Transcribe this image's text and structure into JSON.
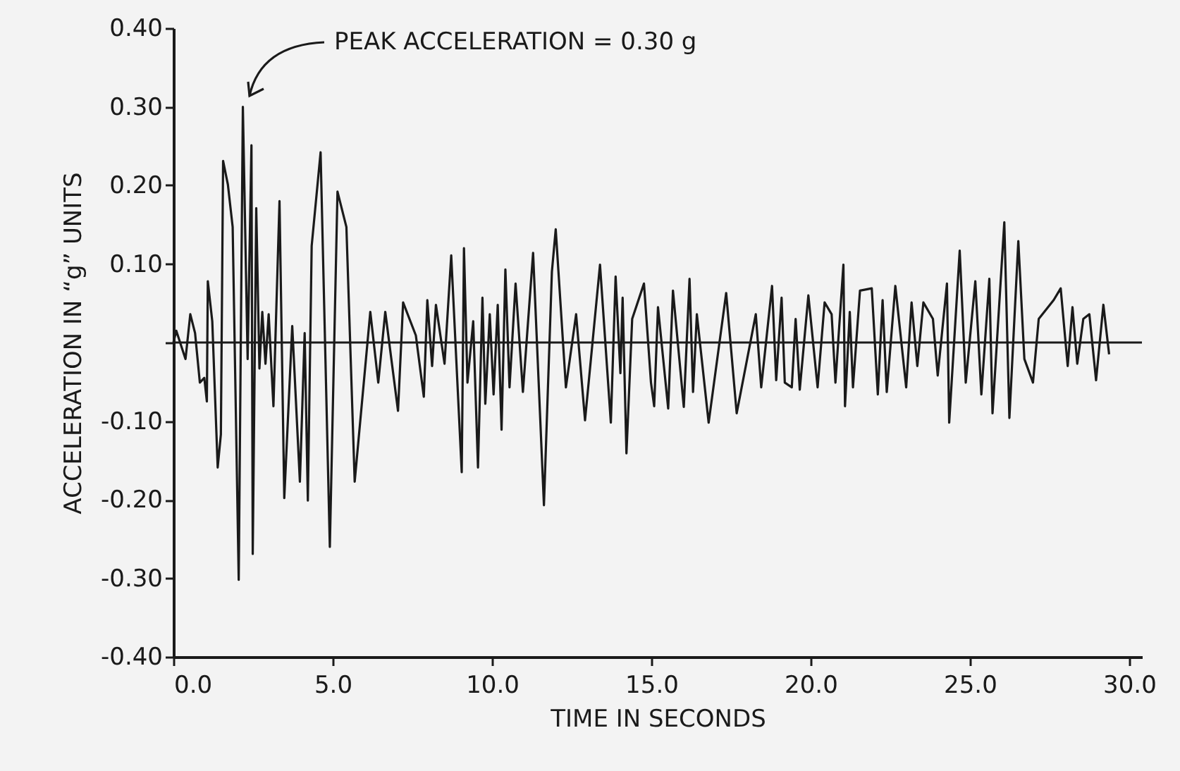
{
  "chart_data": {
    "type": "line",
    "xlabel": "TIME IN SECONDS",
    "ylabel": "ACCELERATION IN “g” UNITS",
    "annotations": [
      "PEAK  ACCELERATION = 0.30 g"
    ],
    "xlim": [
      0,
      30.4
    ],
    "ylim": [
      -0.4,
      0.4
    ],
    "xticks": [
      {
        "value": 0,
        "label": "0.0"
      },
      {
        "value": 5,
        "label": "5.0"
      },
      {
        "value": 10,
        "label": "10.0"
      },
      {
        "value": 15,
        "label": "15.0"
      },
      {
        "value": 20,
        "label": "20.0"
      },
      {
        "value": 25,
        "label": "25.0"
      },
      {
        "value": 30,
        "label": "30.0"
      }
    ],
    "yticks": [
      {
        "value": -0.4,
        "label": "-0.40"
      },
      {
        "value": -0.3,
        "label": "-0.30"
      },
      {
        "value": -0.2,
        "label": "-0.20"
      },
      {
        "value": -0.1,
        "label": "-0.10"
      },
      {
        "value": 0,
        "label": null
      },
      {
        "value": 0.1,
        "label": "0.10"
      },
      {
        "value": 0.2,
        "label": "0.20"
      },
      {
        "value": 0.3,
        "label": "0.30"
      },
      {
        "value": 0.4,
        "label": "0.40"
      }
    ],
    "ref_lines": [
      {
        "axis": "y",
        "value": 0
      }
    ],
    "grid": false,
    "marker": "none",
    "line_style": "solid",
    "series": [
      {
        "color": "#1a1a1a",
        "x": [
          0,
          0.09,
          0.38,
          0.53,
          0.68,
          0.83,
          0.97,
          1.05,
          1.08,
          1.22,
          1.39,
          1.49,
          1.56,
          1.71,
          1.86,
          2.05,
          2.18,
          2.33,
          2.45,
          2.49,
          2.6,
          2.7,
          2.79,
          2.89,
          2.99,
          3.14,
          3.33,
          3.48,
          3.73,
          3.97,
          4.12,
          4.22,
          4.34,
          4.62,
          4.91,
          5.15,
          5.43,
          5.69,
          6.18,
          6.43,
          6.65,
          7.05,
          7.21,
          7.61,
          7.86,
          7.97,
          8.12,
          8.24,
          8.51,
          8.72,
          9.05,
          9.12,
          9.23,
          9.41,
          9.56,
          9.7,
          9.79,
          9.93,
          10.05,
          10.18,
          10.3,
          10.42,
          10.55,
          10.74,
          10.97,
          11.29,
          11.63,
          11.88,
          12.0,
          12.32,
          12.64,
          12.92,
          13.39,
          13.73,
          13.88,
          14.03,
          14.1,
          14.22,
          14.4,
          14.77,
          14.99,
          15.09,
          15.21,
          15.53,
          15.68,
          16.02,
          16.2,
          16.31,
          16.43,
          16.8,
          17.35,
          17.68,
          18.28,
          18.45,
          18.79,
          18.92,
          19.09,
          19.19,
          19.41,
          19.53,
          19.66,
          19.93,
          20.22,
          20.44,
          20.66,
          20.78,
          21.03,
          21.08,
          21.23,
          21.33,
          21.55,
          21.92,
          22.11,
          22.26,
          22.39,
          22.66,
          23.0,
          23.17,
          23.35,
          23.54,
          23.84,
          23.99,
          24.28,
          24.35,
          24.68,
          24.87,
          25.17,
          25.36,
          25.61,
          25.71,
          26.08,
          26.24,
          26.52,
          26.71,
          26.98,
          27.16,
          27.63,
          27.85,
          28.07,
          28.22,
          28.37,
          28.56,
          28.75,
          28.96,
          29.19,
          29.37
        ],
        "values": [
          0,
          0.015,
          -0.021,
          0.036,
          0.012,
          -0.051,
          -0.045,
          -0.075,
          0.078,
          0.027,
          -0.159,
          -0.117,
          0.231,
          0.201,
          0.147,
          -0.302,
          0.3,
          -0.021,
          0.251,
          -0.269,
          0.171,
          -0.033,
          0.039,
          -0.027,
          0.036,
          -0.081,
          0.18,
          -0.198,
          0.021,
          -0.177,
          0.012,
          -0.201,
          0.123,
          0.242,
          -0.26,
          0.192,
          0.147,
          -0.177,
          0.039,
          -0.051,
          0.039,
          -0.087,
          0.051,
          0.009,
          -0.069,
          0.054,
          -0.03,
          0.048,
          -0.027,
          0.111,
          -0.165,
          0.12,
          -0.051,
          0.027,
          -0.159,
          0.057,
          -0.078,
          0.036,
          -0.066,
          0.048,
          -0.111,
          0.093,
          -0.057,
          0.075,
          -0.063,
          0.114,
          -0.207,
          0.09,
          0.144,
          -0.057,
          0.036,
          -0.099,
          0.099,
          -0.102,
          0.084,
          -0.039,
          0.057,
          -0.141,
          0.03,
          0.075,
          -0.051,
          -0.081,
          0.045,
          -0.084,
          0.066,
          -0.082,
          0.081,
          -0.063,
          0.036,
          -0.102,
          0.063,
          -0.09,
          0.036,
          -0.057,
          0.072,
          -0.048,
          0.057,
          -0.051,
          -0.057,
          0.03,
          -0.06,
          0.06,
          -0.057,
          0.051,
          0.036,
          -0.051,
          0.099,
          -0.081,
          0.039,
          -0.057,
          0.066,
          0.069,
          -0.066,
          0.054,
          -0.063,
          0.072,
          -0.057,
          0.051,
          -0.03,
          0.051,
          0.03,
          -0.042,
          0.075,
          -0.102,
          0.117,
          -0.051,
          0.078,
          -0.066,
          0.081,
          -0.09,
          0.153,
          -0.096,
          0.129,
          -0.021,
          -0.051,
          0.03,
          0.054,
          0.069,
          -0.03,
          0.045,
          -0.027,
          0.03,
          0.036,
          -0.048,
          0.048,
          -0.015
        ]
      }
    ]
  }
}
